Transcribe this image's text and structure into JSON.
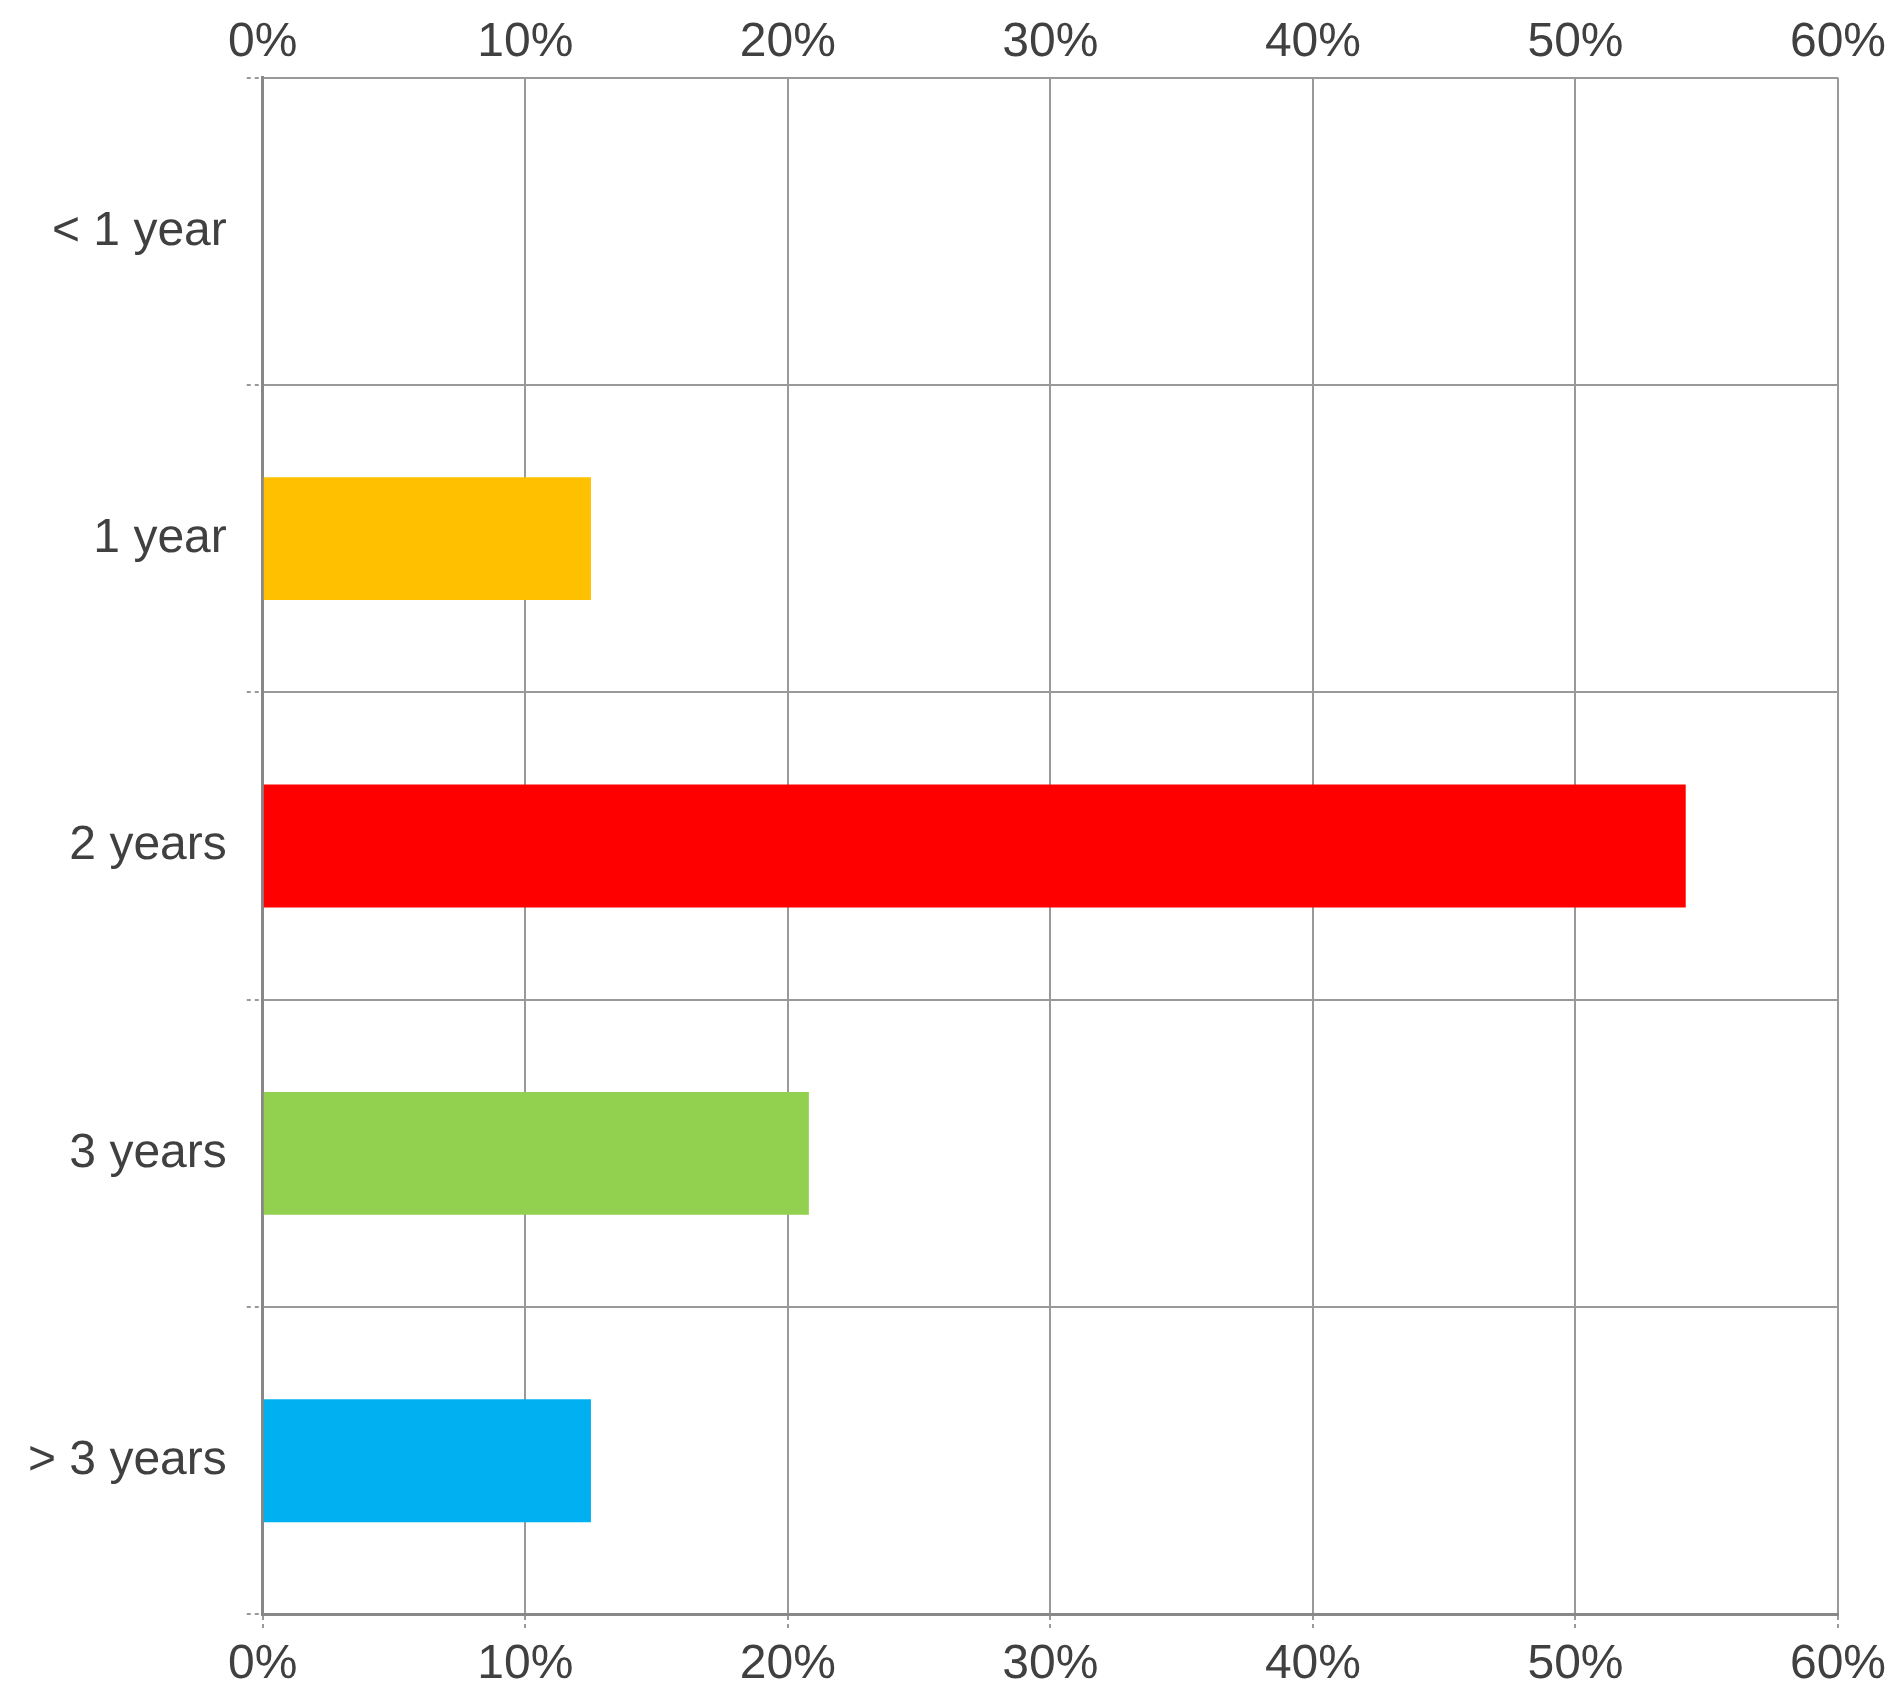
{
  "chart_data": {
    "type": "bar",
    "orientation": "horizontal",
    "categories": [
      "< 1 year",
      "1 year",
      "2 years",
      "3 years",
      "> 3 years"
    ],
    "values": [
      0,
      12.5,
      54.2,
      20.8,
      12.5
    ],
    "colors": [
      null,
      "#ffc000",
      "#ff0000",
      "#92d050",
      "#00b0f0"
    ],
    "xlim": [
      0,
      60
    ],
    "xticks": [
      {
        "value": 0,
        "label": "0%"
      },
      {
        "value": 10,
        "label": "10%"
      },
      {
        "value": 20,
        "label": "20%"
      },
      {
        "value": 30,
        "label": "30%"
      },
      {
        "value": 40,
        "label": "40%"
      },
      {
        "value": 50,
        "label": "50%"
      },
      {
        "value": 60,
        "label": "60%"
      }
    ],
    "x2lim": [
      0,
      60
    ],
    "x2ticks": [
      {
        "value": 0,
        "label": "0%"
      },
      {
        "value": 10,
        "label": "10%"
      },
      {
        "value": 20,
        "label": "20%"
      },
      {
        "value": 30,
        "label": "30%"
      },
      {
        "value": 40,
        "label": "40%"
      },
      {
        "value": 50,
        "label": "50%"
      },
      {
        "value": 60,
        "label": "60%"
      }
    ],
    "grid": true,
    "legend": false
  }
}
